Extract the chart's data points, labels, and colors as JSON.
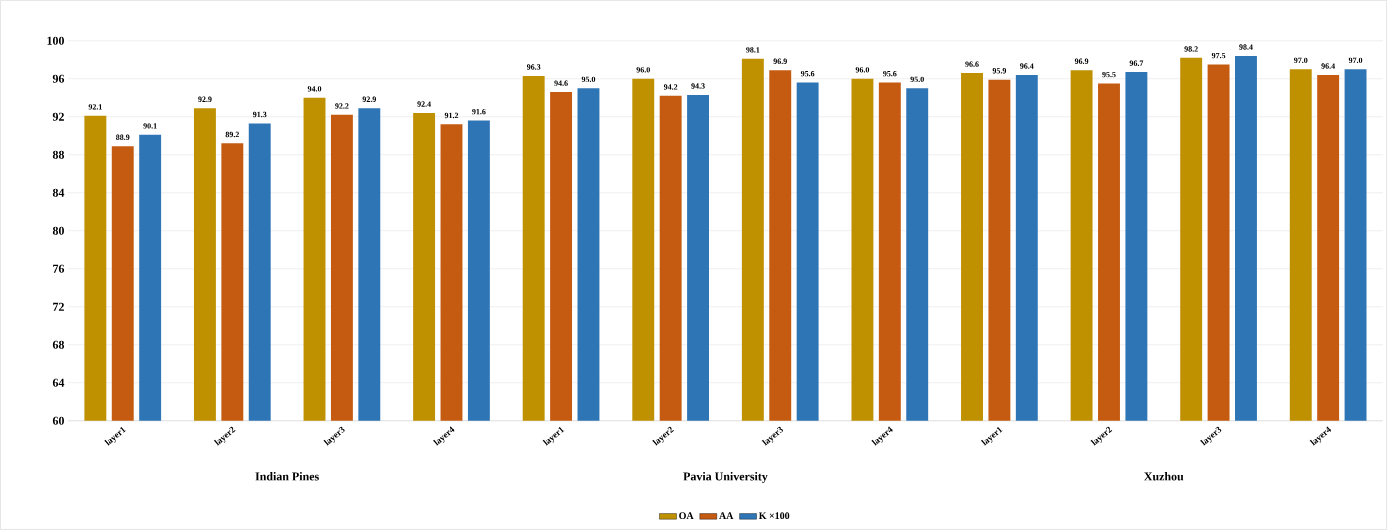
{
  "chart_data": {
    "type": "bar",
    "categories": [
      "layer1",
      "layer2",
      "layer3",
      "layer4",
      "layer1",
      "layer2",
      "layer3",
      "layer4",
      "layer1",
      "layer2",
      "layer3",
      "layer4"
    ],
    "series": [
      {
        "name": "OA",
        "color": "#bf9000",
        "values": [
          92.1,
          92.9,
          94.0,
          92.4,
          96.3,
          96.0,
          98.1,
          96.0,
          96.6,
          96.9,
          98.2,
          97.0
        ],
        "value_labels": [
          "92.1",
          "92.9",
          "94.0",
          "92.4",
          "96.3",
          "96.0",
          "98.1",
          "96.0",
          "96.6",
          "96.9",
          "98.2",
          "97.0"
        ]
      },
      {
        "name": "AA",
        "color": "#c55a11",
        "values": [
          88.9,
          89.2,
          92.2,
          91.2,
          94.6,
          94.2,
          96.9,
          95.6,
          95.9,
          95.5,
          97.5,
          96.4
        ],
        "value_labels": [
          "88.9",
          "89.2",
          "92.2",
          "91.2",
          "94.6",
          "94.2",
          "96.9",
          "95.6",
          "95.9",
          "95.5",
          "97.5",
          "96.4"
        ]
      },
      {
        "name": "K ×100",
        "color": "#2e75b6",
        "values": [
          90.1,
          91.3,
          92.9,
          91.6,
          95.0,
          94.3,
          95.6,
          95.0,
          96.4,
          96.7,
          98.4,
          97.0
        ],
        "value_labels": [
          "90.1",
          "91.3",
          "92.9",
          "91.6",
          "95.0",
          "94.3",
          "95.6",
          "95.0",
          "96.4",
          "96.7",
          "98.4",
          "97.0"
        ]
      }
    ],
    "annotations": [
      "Indian Pines",
      "Pavia University",
      "Xuzhou"
    ],
    "ylim": [
      60,
      100
    ],
    "yticks": [
      60,
      64,
      68,
      72,
      76,
      80,
      84,
      88,
      92,
      96,
      100
    ],
    "grid": "y",
    "legend": "bottom"
  }
}
